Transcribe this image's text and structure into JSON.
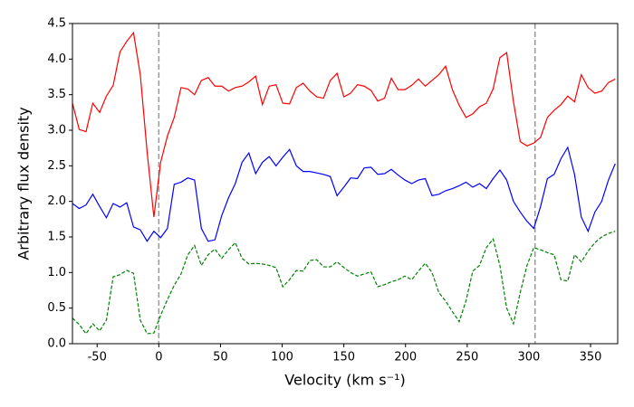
{
  "chart_data": {
    "type": "line",
    "xlabel": "Velocity (km s⁻¹)",
    "ylabel": "Arbitrary flux density",
    "x": [
      -70,
      -64.5,
      -59,
      -53.5,
      -48,
      -42.5,
      -37,
      -31.5,
      -26,
      -20.5,
      -15,
      -9.5,
      -4,
      1.5,
      7,
      12.5,
      18,
      23.5,
      29,
      34.5,
      40,
      45.5,
      51,
      56.5,
      62,
      67.5,
      73,
      78.5,
      84,
      89.5,
      95,
      100.5,
      106,
      111.5,
      117,
      122.5,
      128,
      133.5,
      139,
      144.5,
      150,
      155.5,
      161,
      166.5,
      172,
      177.5,
      183,
      188.5,
      194,
      199.5,
      205,
      210.5,
      216,
      221.5,
      227,
      232.5,
      238,
      243.5,
      249,
      254.5,
      260,
      265.5,
      271,
      276.5,
      282,
      287.5,
      293,
      298.5,
      304,
      309.5,
      315,
      320.5,
      326,
      331.5,
      337,
      342.5,
      348,
      353.5,
      359,
      364.5,
      370
    ],
    "series": [
      {
        "name": "red",
        "color": "#ff0000",
        "linestyle": "solid",
        "values": [
          3.38,
          3.01,
          2.98,
          3.38,
          3.25,
          3.48,
          3.63,
          4.1,
          4.25,
          4.37,
          3.78,
          2.7,
          1.78,
          2.55,
          2.92,
          3.18,
          3.6,
          3.58,
          3.5,
          3.7,
          3.74,
          3.62,
          3.62,
          3.55,
          3.6,
          3.62,
          3.68,
          3.76,
          3.36,
          3.62,
          3.64,
          3.38,
          3.37,
          3.6,
          3.66,
          3.55,
          3.47,
          3.45,
          3.7,
          3.8,
          3.47,
          3.52,
          3.64,
          3.62,
          3.56,
          3.41,
          3.45,
          3.73,
          3.57,
          3.57,
          3.63,
          3.72,
          3.62,
          3.7,
          3.78,
          3.9,
          3.57,
          3.35,
          3.18,
          3.23,
          3.33,
          3.38,
          3.58,
          4.02,
          4.09,
          3.4,
          2.84,
          2.78,
          2.82,
          2.9,
          3.18,
          3.28,
          3.36,
          3.48,
          3.4,
          3.78,
          3.6,
          3.52,
          3.55,
          3.67,
          3.72
        ]
      },
      {
        "name": "blue",
        "color": "#0000ff",
        "linestyle": "solid",
        "values": [
          1.97,
          1.9,
          1.95,
          2.1,
          1.93,
          1.77,
          1.97,
          1.92,
          1.98,
          1.64,
          1.6,
          1.44,
          1.58,
          1.49,
          1.62,
          2.24,
          2.27,
          2.33,
          2.3,
          1.62,
          1.44,
          1.46,
          1.8,
          2.05,
          2.25,
          2.55,
          2.68,
          2.39,
          2.55,
          2.63,
          2.5,
          2.62,
          2.73,
          2.5,
          2.42,
          2.42,
          2.4,
          2.38,
          2.35,
          2.08,
          2.2,
          2.33,
          2.32,
          2.47,
          2.48,
          2.38,
          2.39,
          2.45,
          2.37,
          2.3,
          2.25,
          2.3,
          2.32,
          2.08,
          2.1,
          2.15,
          2.18,
          2.22,
          2.27,
          2.2,
          2.25,
          2.18,
          2.32,
          2.44,
          2.3,
          2.0,
          1.85,
          1.72,
          1.62,
          1.93,
          2.32,
          2.38,
          2.6,
          2.76,
          2.38,
          1.78,
          1.58,
          1.85,
          2.0,
          2.3,
          2.53
        ]
      },
      {
        "name": "green",
        "color": "#008000",
        "linestyle": "dashed",
        "values": [
          0.36,
          0.27,
          0.14,
          0.28,
          0.18,
          0.33,
          0.94,
          0.97,
          1.03,
          0.99,
          0.33,
          0.14,
          0.15,
          0.4,
          0.62,
          0.82,
          0.98,
          1.25,
          1.38,
          1.1,
          1.25,
          1.33,
          1.2,
          1.32,
          1.42,
          1.2,
          1.12,
          1.13,
          1.12,
          1.1,
          1.07,
          0.8,
          0.9,
          1.03,
          1.02,
          1.17,
          1.18,
          1.08,
          1.08,
          1.15,
          1.07,
          1.0,
          0.95,
          0.98,
          1.01,
          0.8,
          0.83,
          0.87,
          0.9,
          0.95,
          0.9,
          1.02,
          1.13,
          1.0,
          0.72,
          0.6,
          0.45,
          0.31,
          0.6,
          1.02,
          1.1,
          1.35,
          1.47,
          1.1,
          0.5,
          0.28,
          0.72,
          1.1,
          1.35,
          1.32,
          1.28,
          1.25,
          0.9,
          0.88,
          1.25,
          1.15,
          1.3,
          1.42,
          1.5,
          1.55,
          1.58
        ]
      }
    ],
    "vlines": [
      0,
      305
    ],
    "vline_color": "#999999",
    "xlim": [
      -70,
      372
    ],
    "ylim": [
      0,
      4.5
    ],
    "xticks": [
      -50,
      0,
      50,
      100,
      150,
      200,
      250,
      300,
      350
    ],
    "yticks": [
      {
        "value": 0,
        "label": "0.0"
      },
      {
        "value": 0.5,
        "label": "0.5"
      },
      {
        "value": 1,
        "label": "1.0"
      },
      {
        "value": 1.5,
        "label": "1.5"
      },
      {
        "value": 2,
        "label": "2.0"
      },
      {
        "value": 2.5,
        "label": "2.5"
      },
      {
        "value": 3,
        "label": "3.0"
      },
      {
        "value": 3.5,
        "label": "3.5"
      },
      {
        "value": 4,
        "label": "4.0"
      },
      {
        "value": 4.5,
        "label": "4.5"
      }
    ],
    "grid": false
  }
}
